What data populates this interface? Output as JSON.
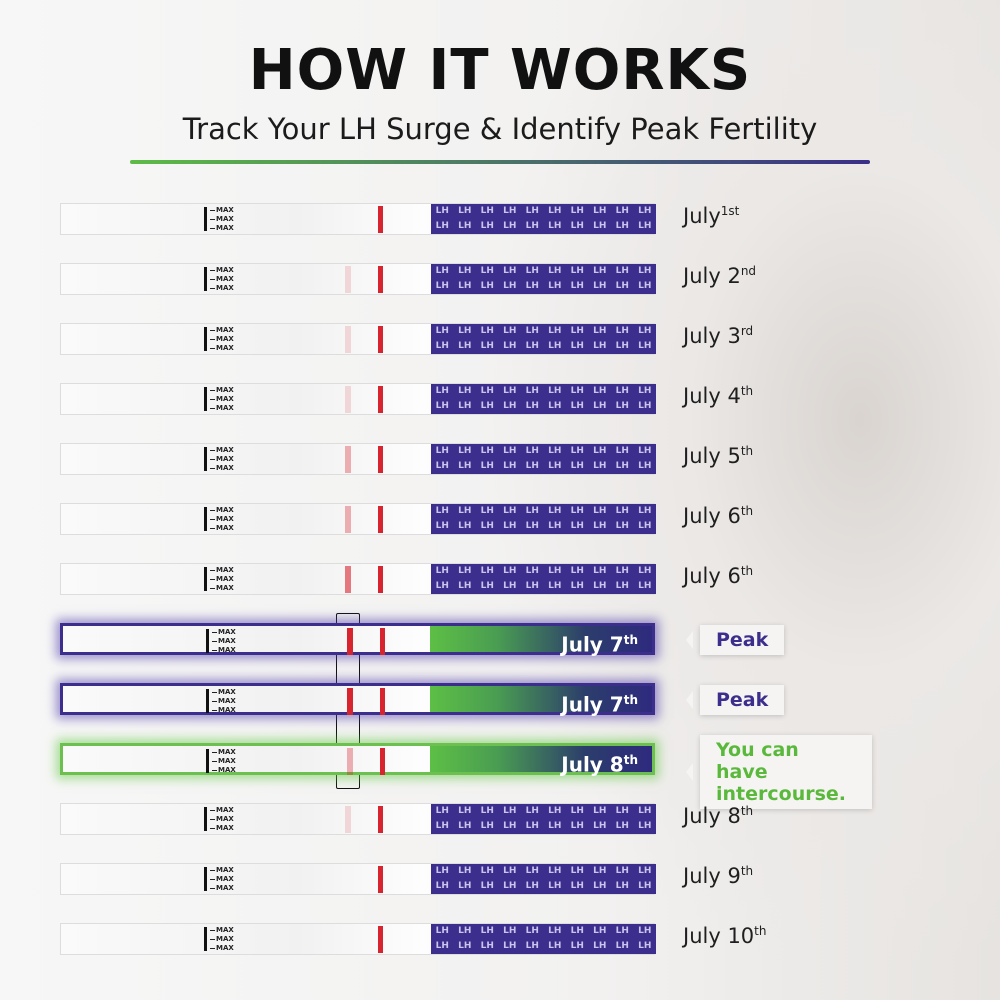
{
  "header": {
    "title": "HOW IT WORKS",
    "subtitle": "Track Your LH Surge & Identify Peak Fertility"
  },
  "strip_text": {
    "max": "MAX",
    "lh": "LH"
  },
  "strips": [
    {
      "date": "July",
      "sup": "1st",
      "test_line": "none"
    },
    {
      "date": "July 2",
      "sup": "nd",
      "test_line": "faint"
    },
    {
      "date": "July 3",
      "sup": "rd",
      "test_line": "faint"
    },
    {
      "date": "July 4",
      "sup": "th",
      "test_line": "faint"
    },
    {
      "date": "July 5",
      "sup": "th",
      "test_line": "light"
    },
    {
      "date": "July 6",
      "sup": "th",
      "test_line": "light"
    },
    {
      "date": "July 6",
      "sup": "th",
      "test_line": "medium"
    },
    {
      "date": "July 7",
      "sup": "th",
      "test_line": "strong",
      "highlight": "peak",
      "callout": "Peak"
    },
    {
      "date": "July 7",
      "sup": "th",
      "test_line": "strong",
      "highlight": "peak",
      "callout": "Peak"
    },
    {
      "date": "July 8",
      "sup": "th",
      "test_line": "light",
      "highlight": "fertile",
      "callout": "You can have intercourse."
    },
    {
      "date": "July 8",
      "sup": "th",
      "test_line": "faint"
    },
    {
      "date": "July 9",
      "sup": "th",
      "test_line": "none"
    },
    {
      "date": "July 10",
      "sup": "th",
      "test_line": "none"
    }
  ]
}
